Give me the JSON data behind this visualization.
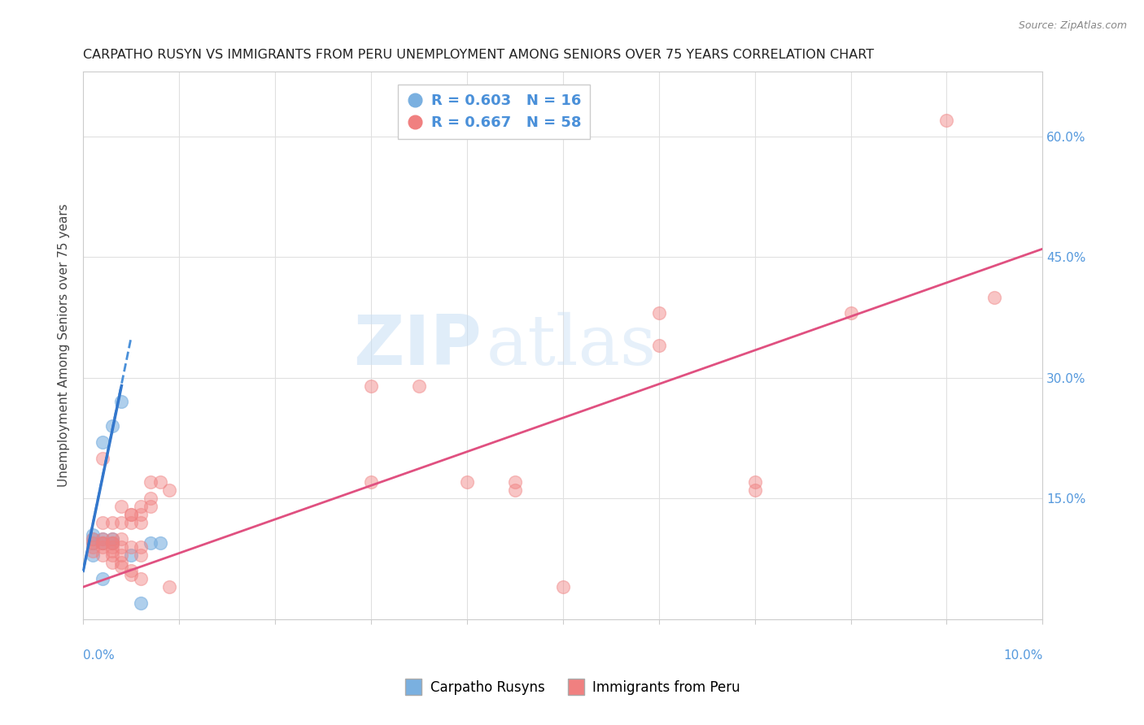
{
  "title": "CARPATHO RUSYN VS IMMIGRANTS FROM PERU UNEMPLOYMENT AMONG SENIORS OVER 75 YEARS CORRELATION CHART",
  "source": "Source: ZipAtlas.com",
  "ylabel": "Unemployment Among Seniors over 75 years",
  "right_yticks": [
    0.0,
    0.15,
    0.3,
    0.45,
    0.6
  ],
  "right_yticklabels": [
    "",
    "15.0%",
    "30.0%",
    "45.0%",
    "60.0%"
  ],
  "xlim": [
    0.0,
    0.1
  ],
  "ylim": [
    0.0,
    0.68
  ],
  "watermark_zip": "ZIP",
  "watermark_atlas": "atlas",
  "legend_blue_r": "R = 0.603",
  "legend_blue_n": "N = 16",
  "legend_pink_r": "R = 0.667",
  "legend_pink_n": "N = 58",
  "blue_color": "#7ab0e0",
  "pink_color": "#f08080",
  "blue_label": "Carpatho Rusyns",
  "pink_label": "Immigrants from Peru",
  "blue_scatter": [
    [
      0.001,
      0.095
    ],
    [
      0.001,
      0.1
    ],
    [
      0.001,
      0.105
    ],
    [
      0.001,
      0.08
    ],
    [
      0.002,
      0.095
    ],
    [
      0.002,
      0.1
    ],
    [
      0.002,
      0.22
    ],
    [
      0.002,
      0.05
    ],
    [
      0.003,
      0.095
    ],
    [
      0.003,
      0.24
    ],
    [
      0.003,
      0.1
    ],
    [
      0.004,
      0.27
    ],
    [
      0.005,
      0.08
    ],
    [
      0.006,
      0.02
    ],
    [
      0.007,
      0.095
    ],
    [
      0.008,
      0.095
    ]
  ],
  "pink_scatter": [
    [
      0.001,
      0.095
    ],
    [
      0.001,
      0.085
    ],
    [
      0.001,
      0.1
    ],
    [
      0.001,
      0.09
    ],
    [
      0.002,
      0.1
    ],
    [
      0.002,
      0.12
    ],
    [
      0.002,
      0.09
    ],
    [
      0.002,
      0.08
    ],
    [
      0.002,
      0.095
    ],
    [
      0.002,
      0.2
    ],
    [
      0.002,
      0.095
    ],
    [
      0.003,
      0.1
    ],
    [
      0.003,
      0.095
    ],
    [
      0.003,
      0.095
    ],
    [
      0.003,
      0.12
    ],
    [
      0.003,
      0.085
    ],
    [
      0.003,
      0.09
    ],
    [
      0.003,
      0.08
    ],
    [
      0.003,
      0.07
    ],
    [
      0.004,
      0.14
    ],
    [
      0.004,
      0.1
    ],
    [
      0.004,
      0.09
    ],
    [
      0.004,
      0.07
    ],
    [
      0.004,
      0.08
    ],
    [
      0.004,
      0.065
    ],
    [
      0.004,
      0.12
    ],
    [
      0.005,
      0.13
    ],
    [
      0.005,
      0.12
    ],
    [
      0.005,
      0.09
    ],
    [
      0.005,
      0.06
    ],
    [
      0.005,
      0.055
    ],
    [
      0.005,
      0.13
    ],
    [
      0.006,
      0.14
    ],
    [
      0.006,
      0.13
    ],
    [
      0.006,
      0.12
    ],
    [
      0.006,
      0.09
    ],
    [
      0.006,
      0.05
    ],
    [
      0.006,
      0.08
    ],
    [
      0.007,
      0.17
    ],
    [
      0.007,
      0.15
    ],
    [
      0.007,
      0.14
    ],
    [
      0.008,
      0.17
    ],
    [
      0.009,
      0.16
    ],
    [
      0.009,
      0.04
    ],
    [
      0.03,
      0.29
    ],
    [
      0.03,
      0.17
    ],
    [
      0.035,
      0.29
    ],
    [
      0.04,
      0.17
    ],
    [
      0.045,
      0.16
    ],
    [
      0.045,
      0.17
    ],
    [
      0.05,
      0.04
    ],
    [
      0.06,
      0.38
    ],
    [
      0.06,
      0.34
    ],
    [
      0.07,
      0.17
    ],
    [
      0.07,
      0.16
    ],
    [
      0.08,
      0.38
    ],
    [
      0.09,
      0.62
    ],
    [
      0.095,
      0.4
    ]
  ],
  "blue_trendline": [
    [
      0.0,
      0.06
    ],
    [
      0.005,
      0.35
    ]
  ],
  "pink_trendline": [
    [
      0.0,
      0.04
    ],
    [
      0.1,
      0.46
    ]
  ]
}
